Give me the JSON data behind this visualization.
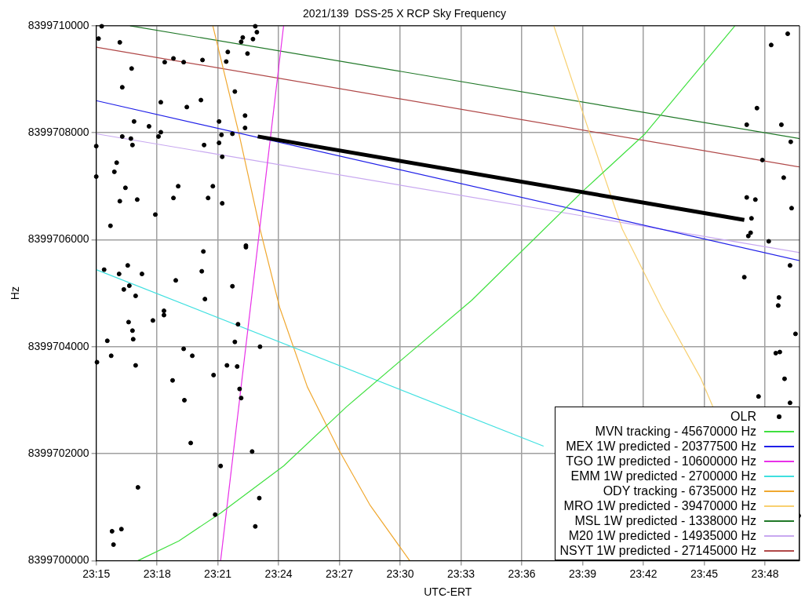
{
  "chart_data": {
    "type": "scatter",
    "title": "2021/139  DSS-25 X RCP Sky Frequency",
    "xlabel": "UTC-ERT",
    "ylabel": "Hz",
    "xlim": [
      23.25,
      23.8284
    ],
    "xticks": [
      {
        "value": 23.25,
        "label": "23:15"
      },
      {
        "value": 23.3,
        "label": "23:18"
      },
      {
        "value": 23.35,
        "label": "23:21"
      },
      {
        "value": 23.4,
        "label": "23:24"
      },
      {
        "value": 23.45,
        "label": "23:27"
      },
      {
        "value": 23.5,
        "label": "23:30"
      },
      {
        "value": 23.55,
        "label": "23:33"
      },
      {
        "value": 23.6,
        "label": "23:36"
      },
      {
        "value": 23.65,
        "label": "23:39"
      },
      {
        "value": 23.7,
        "label": "23:42"
      },
      {
        "value": 23.75,
        "label": "23:45"
      },
      {
        "value": 23.8,
        "label": "23:48"
      }
    ],
    "ylim": [
      8399700000,
      8399710000
    ],
    "yticks": [
      8399700000,
      8399702000,
      8399704000,
      8399706000,
      8399708000,
      8399710000
    ],
    "grid": true,
    "legend": "bottom right",
    "series": [
      {
        "name": "OLR",
        "marker": "circle",
        "color": "#000000",
        "x": [
          23.2545,
          23.3808,
          23.3821,
          23.2519,
          23.2694,
          23.3705,
          23.3692,
          23.3789,
          23.3582,
          23.3744,
          23.2791,
          23.3135,
          23.3063,
          23.3219,
          23.3374,
          23.3569,
          23.2714,
          23.364,
          23.3031,
          23.3245,
          23.3361,
          23.2811,
          23.2934,
          23.351,
          23.3724,
          23.3724,
          23.2714,
          23.2785,
          23.2798,
          23.3012,
          23.3031,
          23.25,
          23.3387,
          23.351,
          23.353,
          23.362,
          23.3536,
          23.2668,
          23.2649,
          23.25,
          23.274,
          23.2694,
          23.2837,
          23.3174,
          23.3135,
          23.3459,
          23.342,
          23.3536,
          23.2986,
          23.2617,
          23.3731,
          23.3731,
          23.3381,
          23.2565,
          23.2688,
          23.2759,
          23.2876,
          23.3368,
          23.3154,
          23.2772,
          23.362,
          23.2727,
          23.2824,
          23.3394,
          23.3057,
          23.3057,
          23.2766,
          23.2966,
          23.2798,
          23.2804,
          23.2591,
          23.3666,
          23.364,
          23.3847,
          23.2506,
          23.2623,
          23.2824,
          23.3219,
          23.329,
          23.3575,
          23.3659,
          23.3465,
          23.3128,
          23.3679,
          23.3692,
          23.3225,
          23.3277,
          23.3782,
          23.3523,
          23.2843,
          23.3841,
          23.3478,
          23.3808,
          23.263,
          23.2707,
          23.2642,
          23.8187,
          23.8051,
          23.7934,
          23.785,
          23.8135,
          23.8212,
          23.7979,
          23.8154,
          23.785,
          23.7921,
          23.8219,
          23.7889,
          23.7882,
          23.7863,
          23.8031,
          23.8206,
          23.783,
          23.8115,
          23.8109,
          23.8251,
          23.8089,
          23.8122,
          23.8161,
          23.7947,
          23.8206,
          23.8277
        ],
        "values": [
          8399709990,
          8399709990,
          8399709880,
          8399709760,
          8399709690,
          8399709780,
          8399709700,
          8399709750,
          8399709510,
          8399709480,
          8399709200,
          8399709390,
          8399709320,
          8399709320,
          8399709360,
          8399709330,
          8399708850,
          8399708770,
          8399708570,
          8399708480,
          8399708610,
          8399708210,
          8399708120,
          8399708210,
          8399708320,
          8399708090,
          8399707930,
          8399707890,
          8399707770,
          8399707930,
          8399708010,
          8399707750,
          8399707770,
          8399707810,
          8399707960,
          8399707980,
          8399707550,
          8399707440,
          8399707270,
          8399707180,
          8399706970,
          8399706720,
          8399706750,
          8399707000,
          8399706780,
          8399707000,
          8399706780,
          8399706680,
          8399706470,
          8399706260,
          8399705890,
          8399705860,
          8399705780,
          8399705440,
          8399705360,
          8399705520,
          8399705360,
          8399705410,
          8399705240,
          8399705140,
          8399705130,
          8399705070,
          8399704950,
          8399704890,
          8399704670,
          8399704590,
          8399704460,
          8399704490,
          8399704300,
          8399704140,
          8399704110,
          8399704420,
          8399704090,
          8399704000,
          8399703710,
          8399703830,
          8399703650,
          8399703960,
          8399703830,
          8399703650,
          8399703630,
          8399703470,
          8399703370,
          8399703210,
          8399703040,
          8399703000,
          8399702200,
          8399702040,
          8399701770,
          8399701370,
          8399701170,
          8399700860,
          8399700640,
          8399700550,
          8399700590,
          8399700300,
          8399709850,
          8399709640,
          8399708460,
          8399708150,
          8399708150,
          8399707830,
          8399707490,
          8399707160,
          8399706790,
          8399706750,
          8399706590,
          8399706400,
          8399706130,
          8399706070,
          8399705970,
          8399705520,
          8399705300,
          8399704920,
          8399704770,
          8399704240,
          8399703880,
          8399703900,
          8399703400,
          8399703070,
          8399702950,
          8399700840
        ]
      },
      {
        "type": "line",
        "color": "#000000",
        "x": [
          23.3828,
          23.783
        ],
        "values": [
          8399707930,
          8399706370
        ]
      },
      {
        "name": "MVN tracking - 45670000 Hz",
        "type": "line",
        "color": "#40e040",
        "x": [
          23.2843,
          23.318,
          23.3523,
          23.4041,
          23.456,
          23.5071,
          23.5589,
          23.6503,
          23.7014,
          23.7753
        ],
        "values": [
          8399700000,
          8399700370,
          8399700890,
          8399701770,
          8399702880,
          8399703870,
          8399704870,
          8399706910,
          8399707980,
          8399710000
        ]
      },
      {
        "name": "MEX 1W predicted - 20377500 Hz",
        "type": "line",
        "color": "#2020e8",
        "x": [
          23.25,
          23.8284
        ],
        "values": [
          8399708600,
          8399705610
        ]
      },
      {
        "name": "TGO 1W predicted - 10600000 Hz",
        "type": "line",
        "color": "#e830e8",
        "x": [
          23.3523,
          23.4041
        ],
        "values": [
          8399700000,
          8399710000
        ]
      },
      {
        "name": "EMM 1W predicted - 2700000 Hz",
        "type": "line",
        "color": "#40e0e0",
        "x": [
          23.25,
          23.6179
        ],
        "values": [
          8399705440,
          8399702140
        ]
      },
      {
        "name": "ODY tracking - 6735000 Hz",
        "type": "line",
        "color": "#f0a830",
        "x": [
          23.3459,
          23.3672,
          23.3847,
          23.4009,
          23.4236,
          23.4495,
          23.4754,
          23.5078
        ],
        "values": [
          8399710000,
          8399708000,
          8399706200,
          8399704730,
          8399703250,
          8399702070,
          8399701030,
          8399700000
        ]
      },
      {
        "name": "MRO 1W predicted - 39470000 Hz",
        "type": "line",
        "color": "#f8d070",
        "x": [
          23.6263,
          23.6567,
          23.6826,
          23.715,
          23.7474,
          23.7571
        ],
        "values": [
          8399710000,
          8399707930,
          8399706200,
          8399704730,
          8399703400,
          8399702880
        ]
      },
      {
        "name": "MSL 1W predicted - 1338000 Hz",
        "type": "line",
        "color": "#207828",
        "x": [
          23.2778,
          23.8284
        ],
        "values": [
          8399710000,
          8399707890
        ]
      },
      {
        "name": "M20 1W predicted - 14935000 Hz",
        "type": "line",
        "color": "#c8a8f0",
        "x": [
          23.25,
          23.8284
        ],
        "values": [
          8399707980,
          8399705760
        ]
      },
      {
        "name": "NSYT 1W predicted - 27145000 Hz",
        "type": "line",
        "color": "#b04848",
        "x": [
          23.25,
          23.8284
        ],
        "values": [
          8399709600,
          8399707360
        ]
      }
    ]
  }
}
